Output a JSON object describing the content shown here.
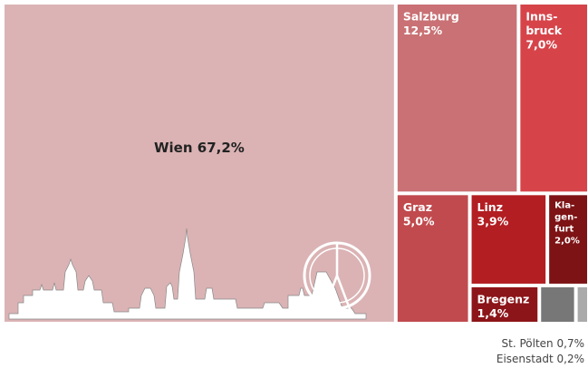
{
  "chart_data": {
    "type": "treemap",
    "categories": [
      [
        "Wien"
      ],
      [
        "Salzburg"
      ],
      [
        "Inns-",
        "bruck"
      ],
      [
        "Graz"
      ],
      [
        "Linz"
      ],
      [
        "Kla-",
        "gen-",
        "furt"
      ],
      [
        "Bregenz"
      ],
      [
        "St. Pölten"
      ],
      [
        "Eisenstadt"
      ]
    ],
    "values": [
      67.2,
      12.5,
      7.0,
      5.0,
      3.9,
      2.0,
      1.4,
      0.7,
      0.2
    ],
    "value_labels": [
      "67,2%",
      "12,5%",
      "7,0%",
      "5,0%",
      "3,9%",
      "2,0%",
      "1,4%",
      "0,7%",
      "0,2%"
    ],
    "colors": [
      "#dbb3b4",
      "#c97174",
      "#d6444a",
      "#c04a4e",
      "#b21e22",
      "#7d1315",
      "#8c1519",
      "#777777",
      "#aaaaaa"
    ]
  }
}
